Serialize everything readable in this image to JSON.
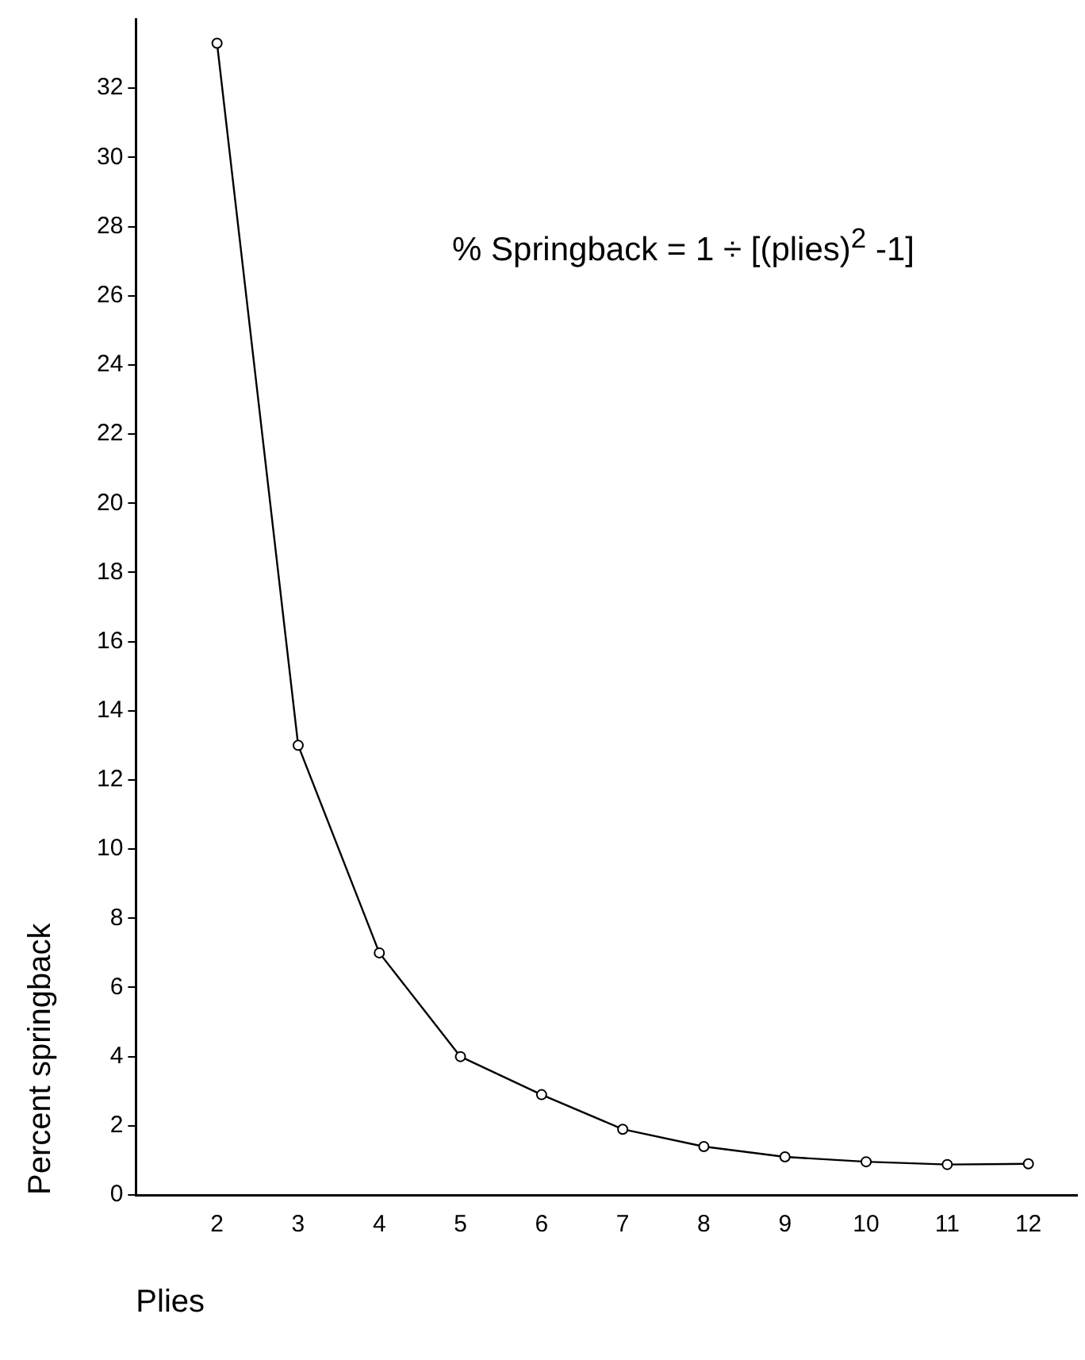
{
  "chart_data": {
    "type": "line",
    "xlabel": "Plies",
    "ylabel": "Percent springback",
    "annotations": [
      "% Springback = 1 ÷ [(plies)$^{2}$ -1]"
    ],
    "x": [
      2,
      3,
      4,
      5,
      6,
      7,
      8,
      9,
      10,
      11,
      12
    ],
    "series": [
      {
        "color": "#000000",
        "values": [
          33.3,
          13,
          7,
          4,
          2.9,
          1.9,
          1.4,
          1.1,
          0.96,
          0.88,
          0.9
        ]
      }
    ],
    "xlim": [
      1,
      12.6
    ],
    "xticks": [
      2,
      3,
      4,
      5,
      6,
      7,
      8,
      9,
      10,
      11,
      12
    ],
    "ylim": [
      0,
      34
    ],
    "yticks": [
      0,
      2,
      4,
      6,
      8,
      10,
      12,
      14,
      16,
      18,
      20,
      22,
      24,
      26,
      28,
      30,
      32
    ],
    "grid": false,
    "legend": false,
    "marker": "circle",
    "line_style": "solid"
  }
}
